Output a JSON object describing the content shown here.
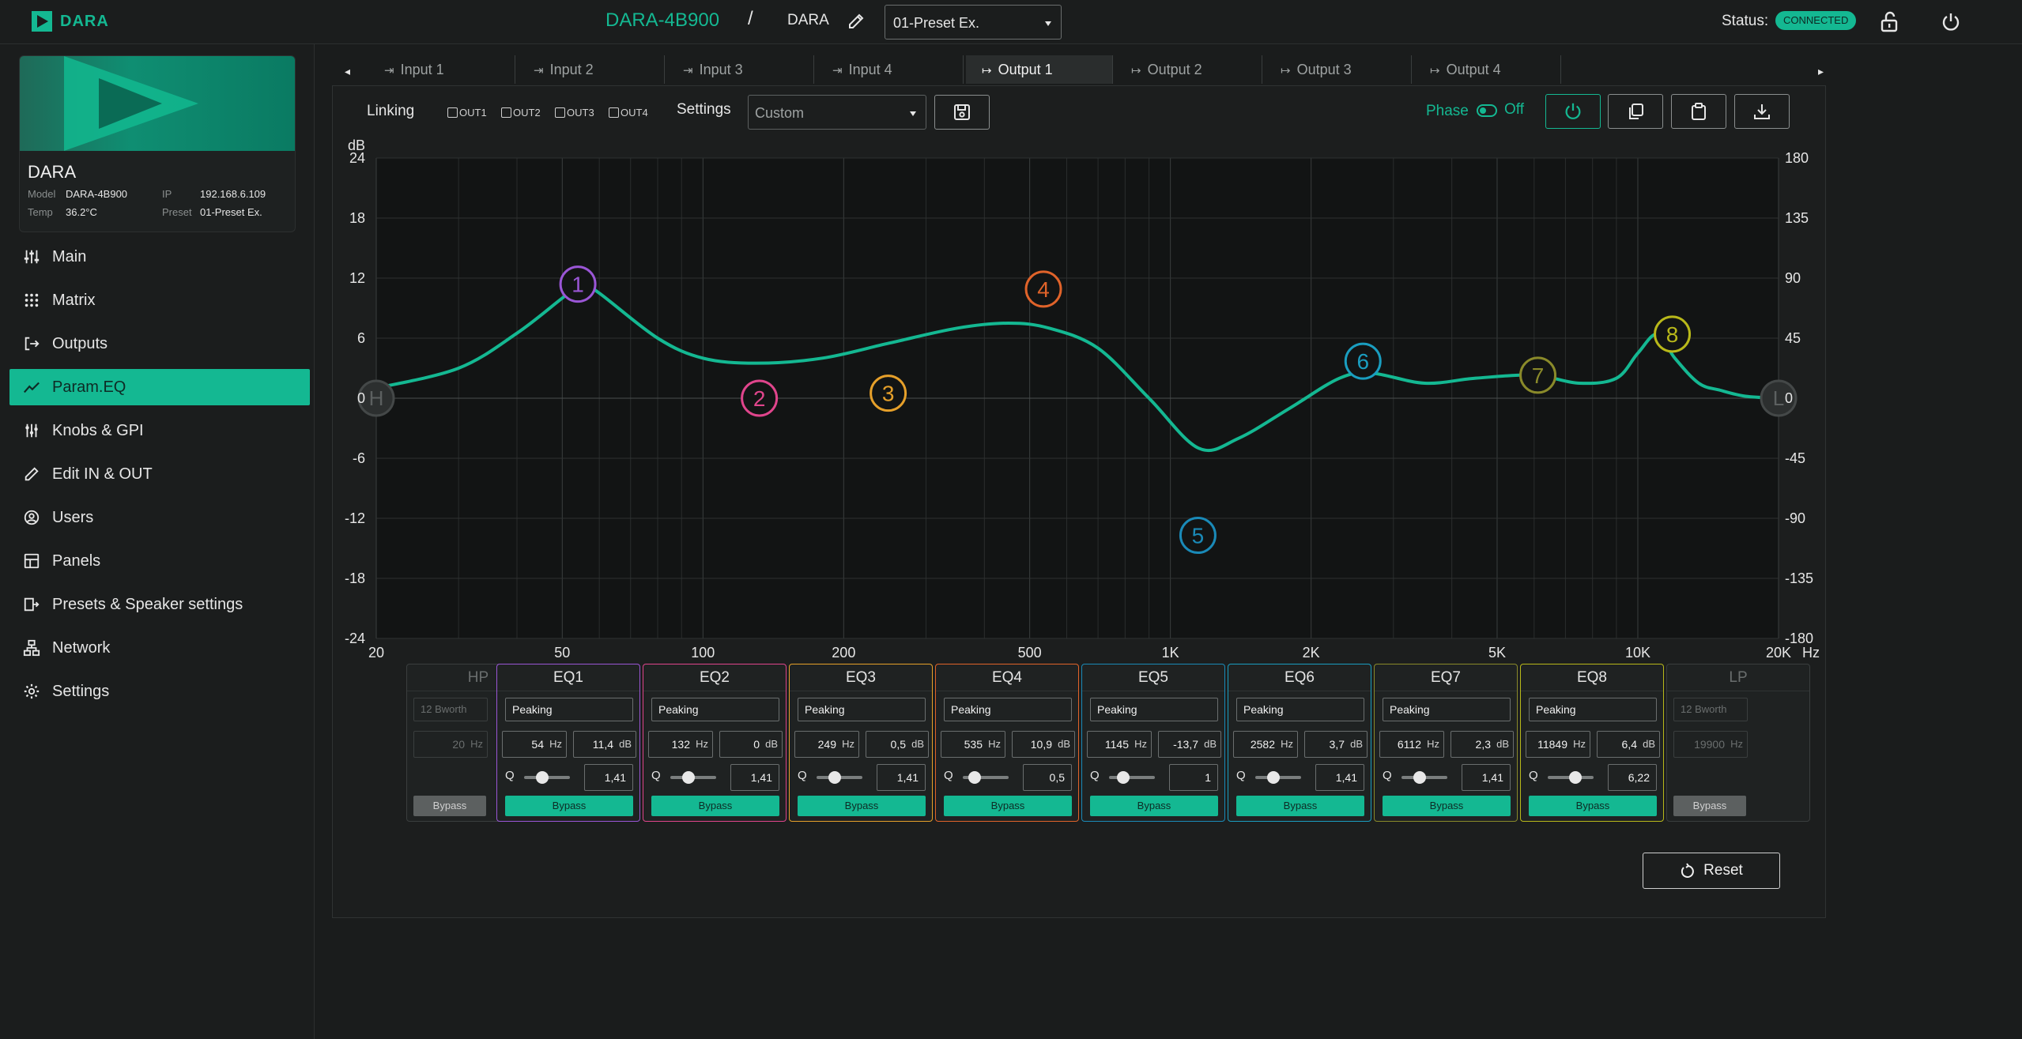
{
  "topbar": {
    "logo_text": "DARA",
    "device_title": "DARA-4B900",
    "separator": "/",
    "crumb": "DARA",
    "preset_value": "01-Preset Ex.",
    "status_label": "Status:",
    "status_badge": "CONNECTED",
    "icons": [
      "pencil-icon",
      "unlock-icon",
      "power-icon"
    ]
  },
  "device_card": {
    "name": "DARA",
    "model_label": "Model",
    "model": "DARA-4B900",
    "ip_label": "IP",
    "ip": "192.168.6.109",
    "temp_label": "Temp",
    "temp": "36.2°C",
    "preset_label": "Preset",
    "preset": "01-Preset Ex."
  },
  "sidebar": {
    "items": [
      {
        "label": "Main",
        "icon": "sliders-icon"
      },
      {
        "label": "Matrix",
        "icon": "grid-dots-icon"
      },
      {
        "label": "Outputs",
        "icon": "output-arrow-icon"
      },
      {
        "label": "Param.EQ",
        "icon": "trend-line-icon",
        "active": true
      },
      {
        "label": "Knobs & GPI",
        "icon": "knobs-icon"
      },
      {
        "label": "Edit IN & OUT",
        "icon": "pencil-icon"
      },
      {
        "label": "Users",
        "icon": "user-circle-icon"
      },
      {
        "label": "Panels",
        "icon": "panels-icon"
      },
      {
        "label": "Presets & Speaker settings",
        "icon": "presets-icon"
      },
      {
        "label": "Network",
        "icon": "network-icon"
      },
      {
        "label": "Settings",
        "icon": "gear-icon"
      }
    ]
  },
  "tabs": [
    {
      "label": "Input 1"
    },
    {
      "label": "Input 2"
    },
    {
      "label": "Input 3"
    },
    {
      "label": "Input 4"
    },
    {
      "label": "Output 1",
      "active": true
    },
    {
      "label": "Output 2"
    },
    {
      "label": "Output 3"
    },
    {
      "label": "Output 4"
    }
  ],
  "toolbar": {
    "linking_label": "Linking",
    "out_checkboxes": [
      "OUT1",
      "OUT2",
      "OUT3",
      "OUT4"
    ],
    "settings_label": "Settings",
    "settings_value": "Custom",
    "phase_label": "Phase",
    "phase_state": "Off",
    "accent_color": "#14b892"
  },
  "graph": {
    "left_unit": "dB",
    "left_ticks": [
      "24",
      "18",
      "12",
      "6",
      "0",
      "-6",
      "-12",
      "-18",
      "-24"
    ],
    "right_ticks": [
      "180",
      "135",
      "90",
      "45",
      "0",
      "-45",
      "-90",
      "-135",
      "-180"
    ],
    "x_ticks": [
      "20",
      "50",
      "100",
      "200",
      "500",
      "1K",
      "2K",
      "5K",
      "10K",
      "20K"
    ],
    "x_unit": "Hz",
    "hp_marker": "H",
    "lp_marker": "L"
  },
  "chart_data": {
    "type": "line",
    "x_scale": "log",
    "xlim": [
      20,
      20000
    ],
    "ylim": [
      -24,
      24
    ],
    "y2lim": [
      -180,
      180
    ],
    "response_curve": {
      "x": [
        20,
        30,
        40,
        50,
        55,
        60,
        80,
        100,
        130,
        180,
        250,
        350,
        450,
        550,
        700,
        900,
        1150,
        1400,
        1800,
        2300,
        2700,
        3500,
        4500,
        6000,
        7500,
        9000,
        10000,
        11000,
        12000,
        13500,
        15000,
        17000,
        20000
      ],
      "y": [
        1,
        3,
        6.5,
        10,
        11.4,
        10.5,
        6,
        4,
        3.5,
        4,
        5.5,
        7,
        7.5,
        7,
        5,
        0,
        -5,
        -4,
        -1,
        2,
        2.5,
        1.5,
        2,
        2.3,
        1.5,
        2,
        4.5,
        6.4,
        4,
        1.5,
        0.8,
        0.2,
        0
      ]
    },
    "markers": [
      {
        "label": "1",
        "freq": 54,
        "gain": 11.4,
        "color": "#9a56d6"
      },
      {
        "label": "2",
        "freq": 132,
        "gain": 0,
        "color": "#e0458c"
      },
      {
        "label": "3",
        "freq": 249,
        "gain": 0.5,
        "color": "#e6a02a"
      },
      {
        "label": "4",
        "freq": 535,
        "gain": 10.9,
        "color": "#e0632a"
      },
      {
        "label": "5",
        "freq": 1145,
        "gain": -13.7,
        "color": "#1a8ab8"
      },
      {
        "label": "6",
        "freq": 2582,
        "gain": 3.7,
        "color": "#1a9ec0"
      },
      {
        "label": "7",
        "freq": 6112,
        "gain": 2.3,
        "color": "#8a8a2a"
      },
      {
        "label": "8",
        "freq": 11849,
        "gain": 6.4,
        "color": "#b8b81a"
      }
    ]
  },
  "filters": {
    "hp": {
      "title": "HP",
      "type": "12 Bworth",
      "freq": "20",
      "unit": "Hz",
      "bypass": "Bypass"
    },
    "lp": {
      "title": "LP",
      "type": "12 Bworth",
      "freq": "19900",
      "unit": "Hz",
      "bypass": "Bypass"
    },
    "eq": [
      {
        "title": "EQ1",
        "type": "Peaking",
        "freq": "54",
        "gain": "11,4",
        "q": "1,41",
        "q_level": 0.3,
        "color": "#9a56d6"
      },
      {
        "title": "EQ2",
        "type": "Peaking",
        "freq": "132",
        "gain": "0",
        "q": "1,41",
        "q_level": 0.3,
        "color": "#e0458c"
      },
      {
        "title": "EQ3",
        "type": "Peaking",
        "freq": "249",
        "gain": "0,5",
        "q": "1,41",
        "q_level": 0.3,
        "color": "#e6a02a"
      },
      {
        "title": "EQ4",
        "type": "Peaking",
        "freq": "535",
        "gain": "10,9",
        "q": "0,5",
        "q_level": 0.15,
        "color": "#e0632a"
      },
      {
        "title": "EQ5",
        "type": "Peaking",
        "freq": "1145",
        "gain": "-13,7",
        "q": "1",
        "q_level": 0.2,
        "color": "#1a8ab8"
      },
      {
        "title": "EQ6",
        "type": "Peaking",
        "freq": "2582",
        "gain": "3,7",
        "q": "1,41",
        "q_level": 0.3,
        "color": "#1a9ec0"
      },
      {
        "title": "EQ7",
        "type": "Peaking",
        "freq": "6112",
        "gain": "2,3",
        "q": "1,41",
        "q_level": 0.3,
        "color": "#8a8a2a"
      },
      {
        "title": "EQ8",
        "type": "Peaking",
        "freq": "11849",
        "gain": "6,4",
        "q": "6,22",
        "q_level": 0.5,
        "color": "#b8b81a"
      }
    ],
    "hz_unit": "Hz",
    "db_unit": "dB",
    "q_label": "Q",
    "bypass_label": "Bypass"
  },
  "reset_label": "Reset"
}
